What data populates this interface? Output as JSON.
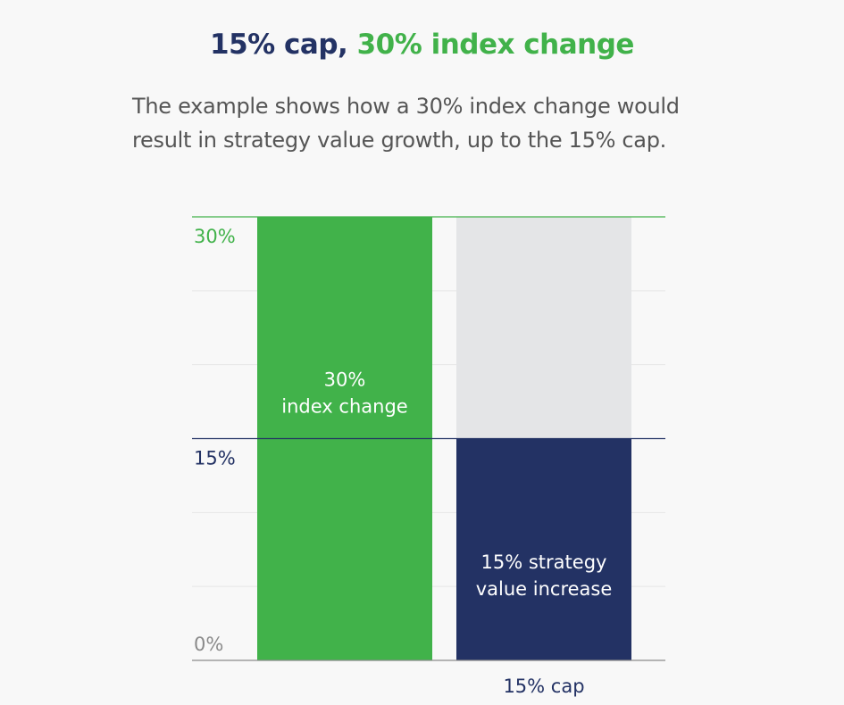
{
  "chart_data": {
    "type": "stacked_bar",
    "title": [
      "15% cap,",
      "30% index change"
    ],
    "title_colors": [
      "#233264",
      "#41b24a"
    ],
    "subtitle": [
      "The example shows how a 30% index change would",
      "result in strategy value growth, up to the 15% cap."
    ],
    "categories": [
      null,
      "15% cap"
    ],
    "series": [
      {
        "colors": [
          "#41b24a",
          "#233264"
        ],
        "values": [
          30,
          15
        ],
        "value_labels": [
          [
            "30%",
            "index change"
          ],
          [
            "15% strategy",
            "value increase"
          ]
        ]
      },
      {
        "colors": [
          null,
          "#e4e5e7"
        ],
        "values": [
          null,
          15
        ]
      }
    ],
    "ylim": [
      0,
      30
    ],
    "yticks": [
      {
        "value": 0,
        "label": "0%",
        "color": "#8a8a8a"
      },
      {
        "value": 15,
        "label": "15%",
        "color": "#233264"
      },
      {
        "value": 30,
        "label": "30%",
        "color": "#41b24a"
      }
    ],
    "minor_yticks": [
      5,
      10,
      20,
      25
    ],
    "grid": true
  }
}
